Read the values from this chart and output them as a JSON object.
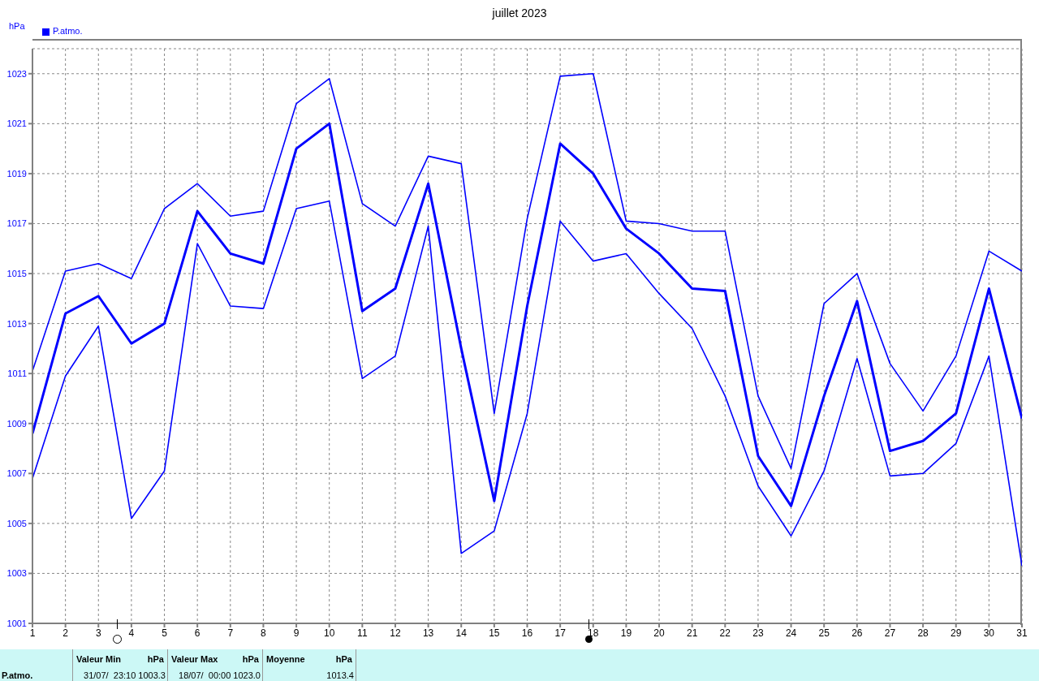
{
  "chart_data": {
    "type": "line",
    "title": "juillet 2023",
    "ylabel": "hPa",
    "x": [
      1,
      2,
      3,
      4,
      5,
      6,
      7,
      8,
      9,
      10,
      11,
      12,
      13,
      14,
      15,
      16,
      17,
      18,
      19,
      20,
      21,
      22,
      23,
      24,
      25,
      26,
      27,
      28,
      29,
      30,
      31
    ],
    "xlim": [
      1,
      31
    ],
    "xticks": [
      1,
      2,
      3,
      4,
      5,
      6,
      7,
      8,
      9,
      10,
      11,
      12,
      13,
      14,
      15,
      16,
      17,
      18,
      19,
      20,
      21,
      22,
      23,
      24,
      25,
      26,
      27,
      28,
      29,
      30,
      31
    ],
    "ylim": [
      1001,
      1024
    ],
    "yticks": [
      1001,
      1003,
      1005,
      1007,
      1009,
      1011,
      1013,
      1015,
      1017,
      1019,
      1021,
      1023
    ],
    "series": [
      {
        "color": "#0000ff",
        "values": [
          1011.1,
          1015.1,
          1015.4,
          1014.8,
          1017.6,
          1018.6,
          1017.3,
          1017.5,
          1021.8,
          1022.8,
          1017.8,
          1016.9,
          1019.7,
          1019.4,
          1009.4,
          1017.2,
          1022.9,
          1023.0,
          1017.1,
          1017.0,
          1016.7,
          1016.7,
          1010.1,
          1007.2,
          1013.8,
          1015.0,
          1011.4,
          1009.5,
          1011.7,
          1015.9,
          1015.1
        ]
      },
      {
        "name": "P.atmo.",
        "color": "#0000ff",
        "values": [
          1008.6,
          1013.4,
          1014.1,
          1012.2,
          1013.0,
          1017.5,
          1015.8,
          1015.4,
          1020.0,
          1021.0,
          1013.5,
          1014.4,
          1018.6,
          1012.0,
          1005.9,
          1013.7,
          1020.2,
          1019.0,
          1016.8,
          1015.8,
          1014.4,
          1014.3,
          1007.7,
          1005.7,
          1010.1,
          1013.9,
          1007.9,
          1008.3,
          1009.4,
          1014.4,
          1009.2
        ]
      },
      {
        "color": "#0000ff",
        "values": [
          1006.8,
          1010.9,
          1012.9,
          1005.2,
          1007.1,
          1016.2,
          1013.7,
          1013.6,
          1017.6,
          1017.9,
          1010.8,
          1011.7,
          1016.9,
          1003.8,
          1004.7,
          1009.4,
          1017.1,
          1015.5,
          1015.8,
          1014.2,
          1012.8,
          1010.1,
          1006.5,
          1004.5,
          1007.1,
          1011.6,
          1006.9,
          1007.0,
          1008.2,
          1011.7,
          1003.3
        ]
      }
    ],
    "annotations": [
      "P.atmo.",
      "Valeur Min",
      "hPa",
      "31/07/  23:10 1003.3",
      "Valeur Max",
      "hPa",
      "18/07/  00:00 1023.0",
      "Moyenne",
      "hPa",
      "1013.4"
    ],
    "grid": true,
    "legend": "top left",
    "marker": "none",
    "line_style": "solid"
  }
}
